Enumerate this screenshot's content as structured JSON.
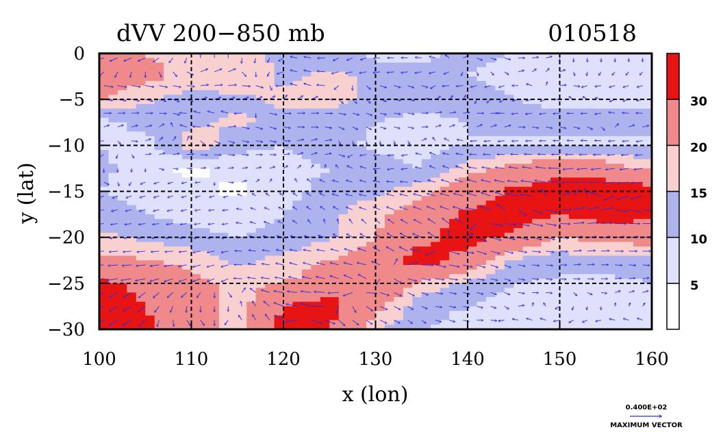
{
  "chart_data": {
    "type": "heatmap",
    "title": "dVV 200−850 mb",
    "date_label": "010518",
    "xlabel": "x (lon)",
    "ylabel": "y (lat)",
    "xlim": [
      100,
      160
    ],
    "ylim": [
      -30,
      0
    ],
    "x_ticks": [
      100,
      110,
      120,
      130,
      140,
      150,
      160
    ],
    "y_ticks": [
      0,
      -5,
      -10,
      -15,
      -20,
      -25,
      -30
    ],
    "x_tick_labels": [
      "100",
      "110",
      "120",
      "130",
      "140",
      "150",
      "160"
    ],
    "y_tick_labels": [
      "0",
      "−5",
      "−10",
      "−15",
      "−20",
      "−25",
      "−30"
    ],
    "grid": true,
    "colorbar": {
      "levels": [
        0,
        5,
        10,
        15,
        20,
        30,
        40
      ],
      "labels": [
        "5",
        "10",
        "15",
        "20",
        "30"
      ],
      "colors": [
        "#ffffff",
        "#dfe0fb",
        "#aeb3ee",
        "#f8d0d0",
        "#f08a8a",
        "#e81414"
      ]
    },
    "field": {
      "lon": [
        100,
        105,
        110,
        115,
        120,
        125,
        130,
        135,
        140,
        145,
        150,
        155,
        160
      ],
      "lat": [
        0,
        -2.5,
        -5,
        -7.5,
        -10,
        -12.5,
        -15,
        -17.5,
        -20,
        -22.5,
        -25,
        -27.5,
        -30
      ],
      "values": [
        [
          22,
          20,
          18,
          20,
          12,
          13,
          8,
          9,
          11,
          10,
          10,
          9,
          8
        ],
        [
          24,
          22,
          18,
          20,
          14,
          16,
          14,
          12,
          10,
          8,
          10,
          9,
          8
        ],
        [
          20,
          16,
          12,
          14,
          16,
          18,
          12,
          11,
          13,
          10,
          9,
          10,
          9
        ],
        [
          8,
          12,
          14,
          16,
          13,
          12,
          10,
          9,
          10,
          12,
          11,
          10,
          11
        ],
        [
          10,
          8,
          18,
          12,
          10,
          12,
          9,
          8,
          10,
          9,
          9,
          10,
          9
        ],
        [
          12,
          6,
          4,
          6,
          8,
          10,
          12,
          10,
          18,
          22,
          28,
          24,
          18
        ],
        [
          10,
          8,
          6,
          4,
          8,
          12,
          14,
          18,
          24,
          32,
          34,
          36,
          34
        ],
        [
          12,
          10,
          8,
          7,
          10,
          14,
          18,
          24,
          32,
          34,
          30,
          34,
          32
        ],
        [
          16,
          14,
          12,
          10,
          12,
          14,
          20,
          28,
          34,
          28,
          20,
          22,
          24
        ],
        [
          22,
          20,
          18,
          14,
          16,
          20,
          24,
          34,
          26,
          14,
          12,
          14,
          12
        ],
        [
          32,
          28,
          22,
          18,
          20,
          24,
          30,
          18,
          14,
          10,
          9,
          8,
          10
        ],
        [
          34,
          30,
          24,
          16,
          30,
          34,
          22,
          12,
          10,
          8,
          9,
          6,
          8
        ],
        [
          36,
          32,
          22,
          18,
          34,
          30,
          16,
          10,
          8,
          9,
          10,
          8,
          9
        ]
      ]
    },
    "vector_legend": {
      "value": "0.400E+02",
      "label": "MAXIMUM VECTOR"
    }
  }
}
